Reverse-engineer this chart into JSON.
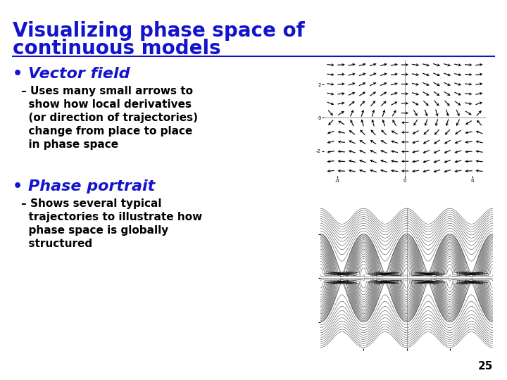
{
  "title_line1": "Visualizing phase space of",
  "title_line2": "continuous models",
  "title_color": "#1414CC",
  "bullet_color": "#1414CC",
  "text_color": "#000000",
  "bg_color": "#FFFFFF",
  "bullet1_header": "Vector field",
  "bullet1_text_lines": [
    "– Uses many small arrows to",
    "  show how local derivatives",
    "  (or direction of trajectories)",
    "  change from place to place",
    "  in phase space"
  ],
  "bullet2_header": "Phase portrait",
  "bullet2_text_lines": [
    "– Shows several typical",
    "  trajectories to illustrate how",
    "  phase space is globally",
    "  structured"
  ],
  "page_number": "25",
  "separator_color": "#1414CC",
  "title_fontsize": 20,
  "header_fontsize": 16,
  "body_fontsize": 11
}
